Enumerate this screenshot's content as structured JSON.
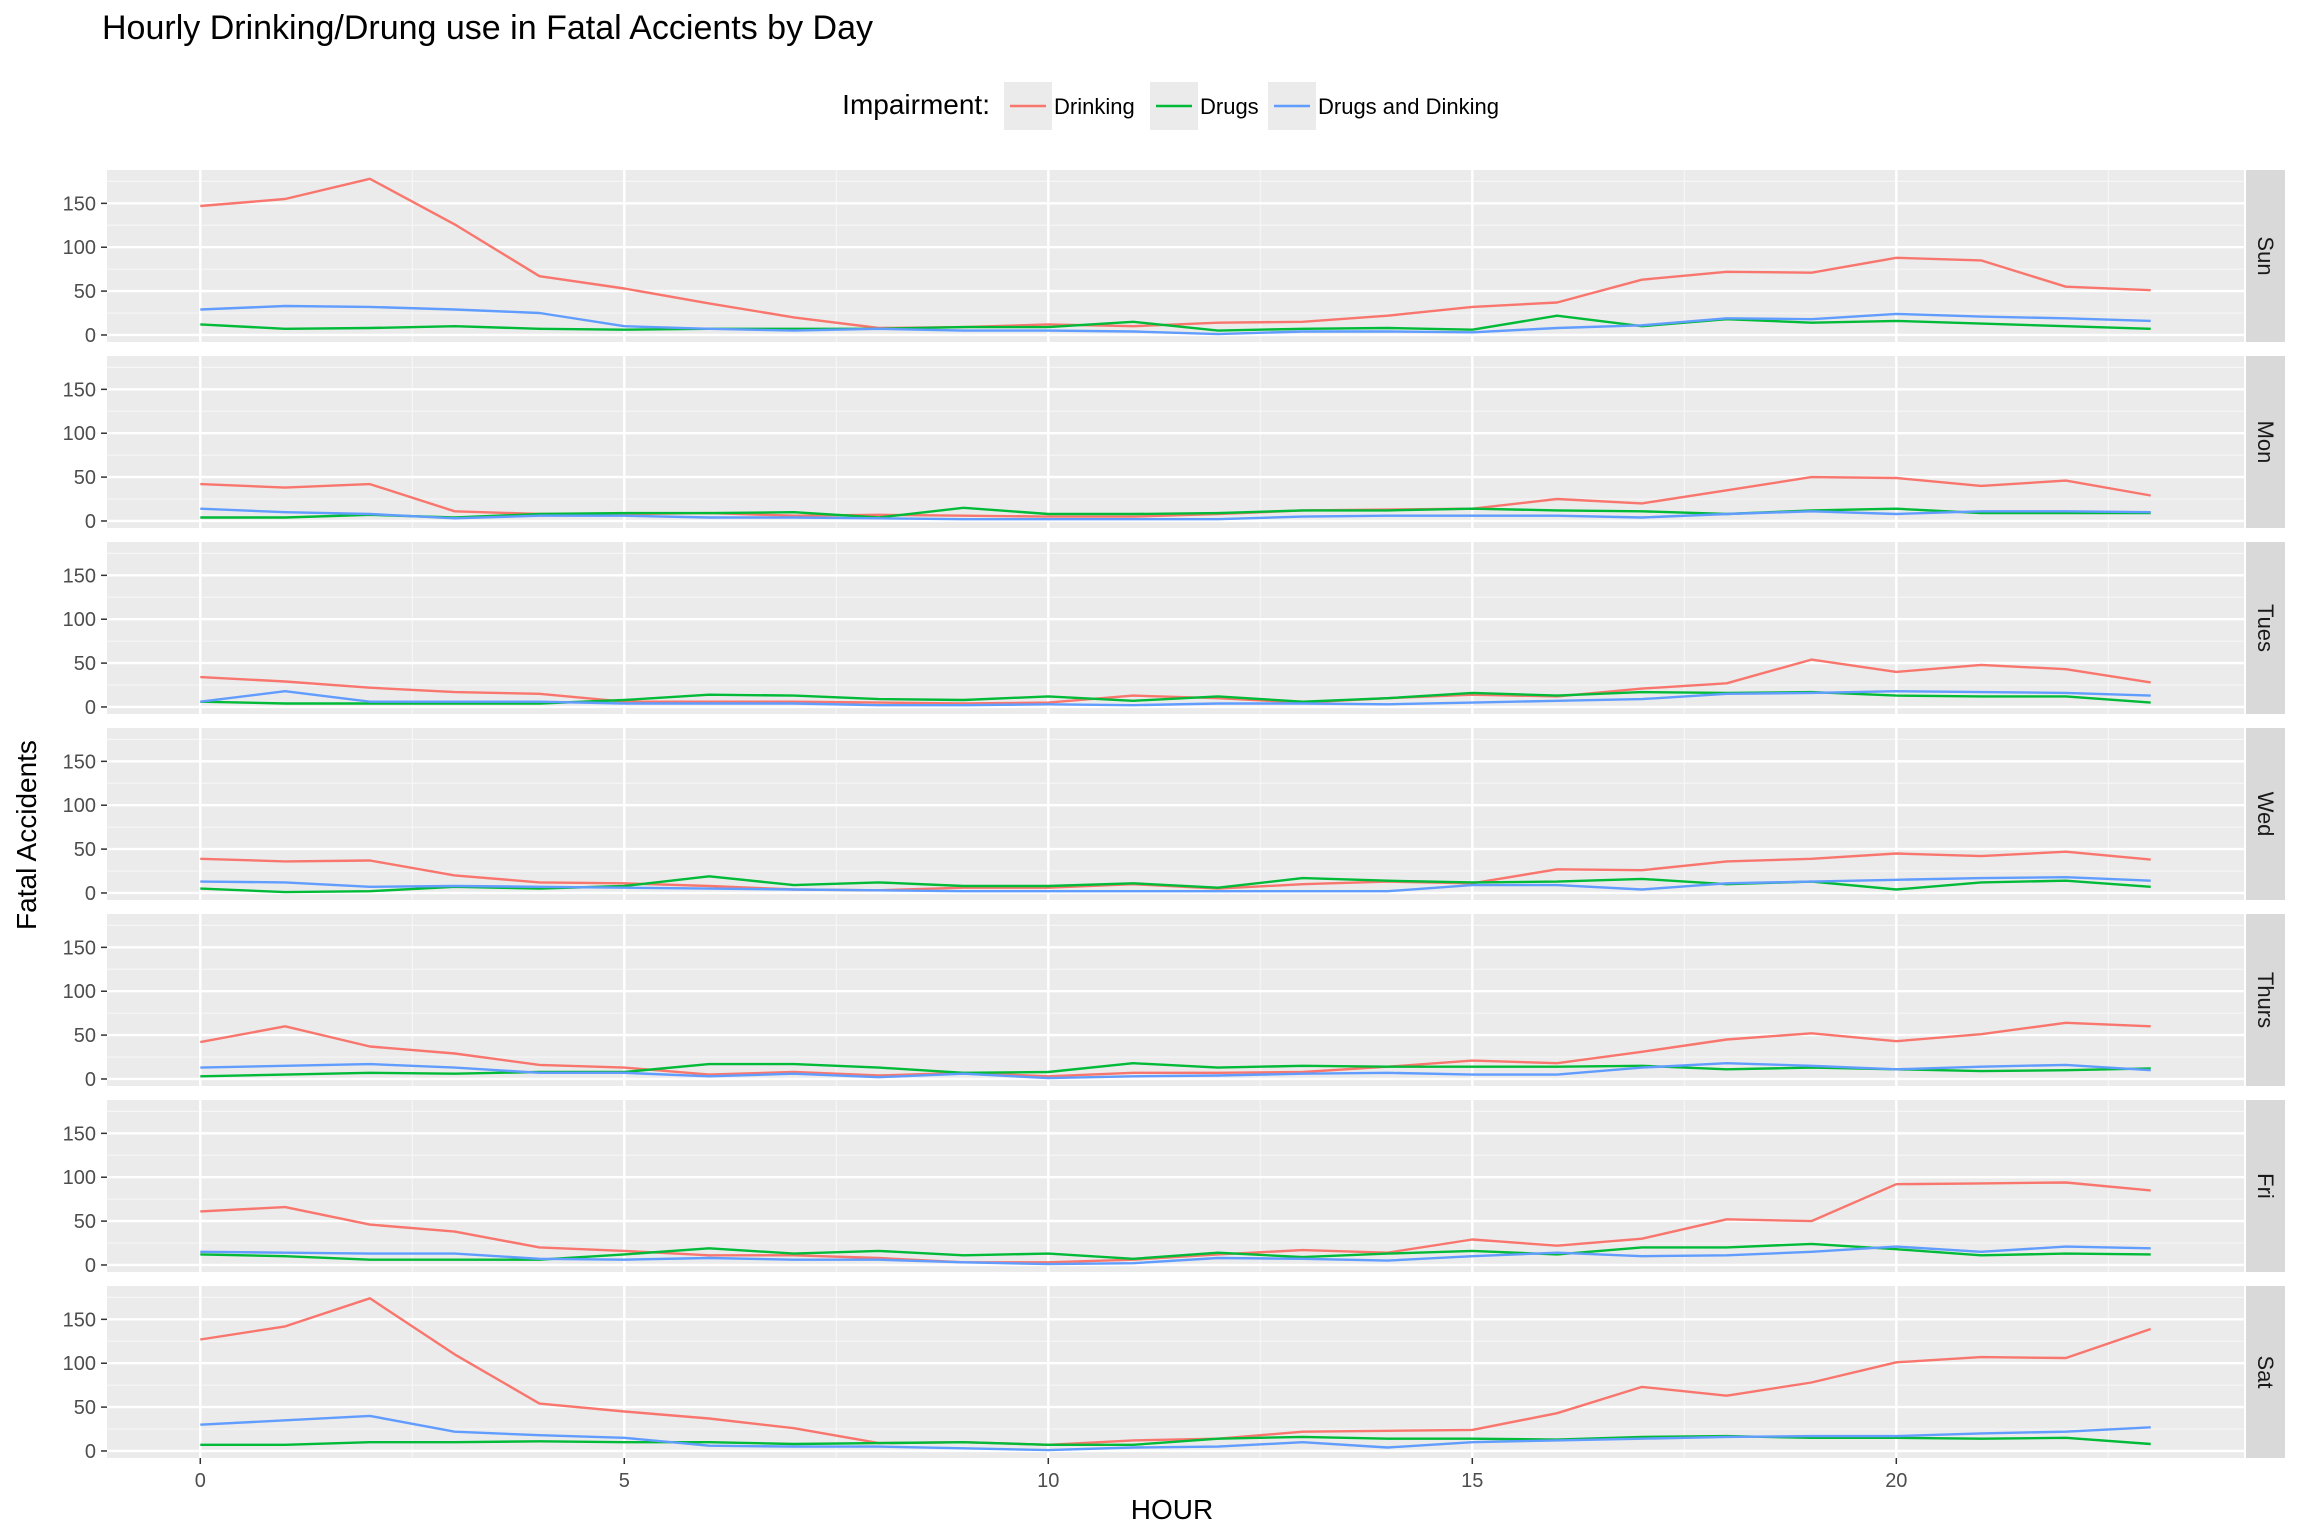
{
  "chart_data": {
    "type": "line",
    "title": "Hourly Drinking/Drung use in Fatal Accients by Day",
    "xlabel": "HOUR",
    "ylabel": "Fatal Accidents",
    "xlim": [
      -1.1,
      24.1
    ],
    "ylim": [
      -8,
      188
    ],
    "x_ticks": [
      0,
      5,
      10,
      15,
      20
    ],
    "y_ticks": [
      0,
      50,
      100,
      150
    ],
    "grid": true,
    "legend": {
      "title": "Impairment:",
      "placement": "top"
    },
    "x": [
      0,
      1,
      2,
      3,
      4,
      5,
      6,
      7,
      8,
      9,
      10,
      11,
      12,
      13,
      14,
      15,
      16,
      17,
      18,
      19,
      20,
      21,
      22,
      23
    ],
    "series_styles": [
      {
        "name": "Drinking",
        "color": "#F8766D"
      },
      {
        "name": "Drugs",
        "color": "#00BA38"
      },
      {
        "name": "Drugs and Dinking",
        "color": "#619CFF"
      }
    ],
    "panels": [
      {
        "facet": "Sun",
        "series": [
          {
            "name": "Drinking",
            "values": [
              147,
              155,
              178,
              126,
              67,
              53,
              36,
              20,
              8,
              9,
              12,
              10,
              14,
              15,
              22,
              32,
              37,
              63,
              72,
              71,
              88,
              85,
              55,
              51
            ]
          },
          {
            "name": "Drugs",
            "values": [
              12,
              7,
              8,
              10,
              7,
              6,
              7,
              7,
              7,
              9,
              9,
              15,
              5,
              7,
              8,
              6,
              22,
              10,
              18,
              14,
              16,
              13,
              10,
              7
            ]
          },
          {
            "name": "Drugs and Dinking",
            "values": [
              29,
              33,
              32,
              29,
              25,
              10,
              7,
              5,
              7,
              5,
              5,
              4,
              1,
              4,
              4,
              3,
              8,
              11,
              19,
              18,
              24,
              21,
              19,
              16
            ]
          }
        ]
      },
      {
        "facet": "Mon",
        "series": [
          {
            "name": "Drinking",
            "values": [
              42,
              38,
              42,
              11,
              8,
              8,
              9,
              6,
              7,
              6,
              5,
              5,
              8,
              12,
              13,
              14,
              25,
              20,
              35,
              50,
              49,
              40,
              46,
              29
            ]
          },
          {
            "name": "Drugs",
            "values": [
              4,
              4,
              7,
              4,
              8,
              9,
              9,
              10,
              4,
              15,
              8,
              8,
              9,
              12,
              12,
              14,
              12,
              11,
              8,
              12,
              14,
              9,
              9,
              9
            ]
          },
          {
            "name": "Drugs and Dinking",
            "values": [
              14,
              10,
              8,
              3,
              6,
              6,
              4,
              4,
              3,
              2,
              2,
              2,
              2,
              5,
              6,
              6,
              6,
              4,
              8,
              11,
              8,
              11,
              11,
              10
            ]
          }
        ]
      },
      {
        "facet": "Tues",
        "series": [
          {
            "name": "Drinking",
            "values": [
              34,
              29,
              22,
              17,
              15,
              6,
              6,
              6,
              5,
              4,
              5,
              13,
              10,
              5,
              10,
              14,
              12,
              21,
              27,
              54,
              40,
              48,
              43,
              28
            ]
          },
          {
            "name": "Drugs",
            "values": [
              6,
              4,
              4,
              4,
              4,
              8,
              14,
              13,
              9,
              8,
              12,
              7,
              12,
              6,
              10,
              16,
              13,
              17,
              16,
              17,
              13,
              12,
              12,
              5
            ]
          },
          {
            "name": "Drugs and Dinking",
            "values": [
              6,
              18,
              6,
              6,
              6,
              4,
              4,
              4,
              2,
              2,
              3,
              2,
              4,
              4,
              3,
              5,
              7,
              9,
              15,
              16,
              18,
              17,
              16,
              13
            ]
          }
        ]
      },
      {
        "facet": "Wed",
        "series": [
          {
            "name": "Drinking",
            "values": [
              39,
              36,
              37,
              20,
              12,
              11,
              8,
              4,
              3,
              6,
              6,
              10,
              5,
              10,
              13,
              11,
              27,
              26,
              36,
              39,
              45,
              42,
              47,
              38
            ]
          },
          {
            "name": "Drugs",
            "values": [
              5,
              1,
              2,
              7,
              5,
              8,
              19,
              9,
              12,
              8,
              8,
              11,
              6,
              17,
              14,
              12,
              13,
              16,
              10,
              13,
              4,
              12,
              14,
              7
            ]
          },
          {
            "name": "Drugs and Dinking",
            "values": [
              13,
              12,
              7,
              8,
              7,
              6,
              5,
              4,
              3,
              2,
              2,
              2,
              2,
              2,
              2,
              9,
              9,
              4,
              11,
              13,
              15,
              17,
              18,
              14
            ]
          }
        ]
      },
      {
        "facet": "Thurs",
        "series": [
          {
            "name": "Drinking",
            "values": [
              42,
              60,
              37,
              29,
              16,
              13,
              5,
              8,
              4,
              7,
              3,
              7,
              7,
              8,
              14,
              21,
              18,
              31,
              45,
              52,
              43,
              51,
              64,
              60
            ]
          },
          {
            "name": "Drugs",
            "values": [
              3,
              5,
              7,
              6,
              8,
              8,
              17,
              17,
              13,
              7,
              8,
              18,
              13,
              15,
              14,
              14,
              14,
              15,
              11,
              13,
              11,
              9,
              10,
              12
            ]
          },
          {
            "name": "Drugs and Dinking",
            "values": [
              13,
              15,
              17,
              13,
              7,
              7,
              3,
              6,
              2,
              6,
              1,
              3,
              4,
              6,
              7,
              5,
              5,
              13,
              18,
              15,
              11,
              14,
              16,
              10
            ]
          }
        ]
      },
      {
        "facet": "Fri",
        "series": [
          {
            "name": "Drinking",
            "values": [
              61,
              66,
              46,
              38,
              20,
              16,
              11,
              11,
              8,
              3,
              3,
              6,
              12,
              17,
              14,
              29,
              22,
              30,
              52,
              50,
              92,
              93,
              94,
              85
            ]
          },
          {
            "name": "Drugs",
            "values": [
              12,
              10,
              6,
              6,
              6,
              12,
              19,
              13,
              16,
              11,
              13,
              7,
              14,
              9,
              13,
              16,
              12,
              20,
              20,
              24,
              18,
              11,
              13,
              12
            ]
          },
          {
            "name": "Drugs and Dinking",
            "values": [
              15,
              14,
              13,
              13,
              7,
              6,
              8,
              6,
              6,
              3,
              1,
              2,
              8,
              7,
              5,
              10,
              14,
              10,
              11,
              15,
              21,
              15,
              21,
              19
            ]
          }
        ]
      },
      {
        "facet": "Sat",
        "series": [
          {
            "name": "Drinking",
            "values": [
              127,
              142,
              174,
              110,
              54,
              45,
              37,
              26,
              9,
              10,
              7,
              12,
              14,
              22,
              23,
              24,
              43,
              73,
              63,
              78,
              101,
              107,
              106,
              139
            ]
          },
          {
            "name": "Drugs",
            "values": [
              7,
              7,
              10,
              10,
              11,
              10,
              10,
              8,
              9,
              10,
              7,
              7,
              14,
              16,
              14,
              14,
              13,
              16,
              17,
              15,
              15,
              14,
              15,
              8
            ]
          },
          {
            "name": "Drugs and Dinking",
            "values": [
              30,
              35,
              40,
              22,
              18,
              15,
              6,
              5,
              5,
              3,
              1,
              4,
              5,
              10,
              4,
              10,
              12,
              14,
              16,
              17,
              17,
              20,
              22,
              27
            ]
          }
        ]
      }
    ]
  }
}
